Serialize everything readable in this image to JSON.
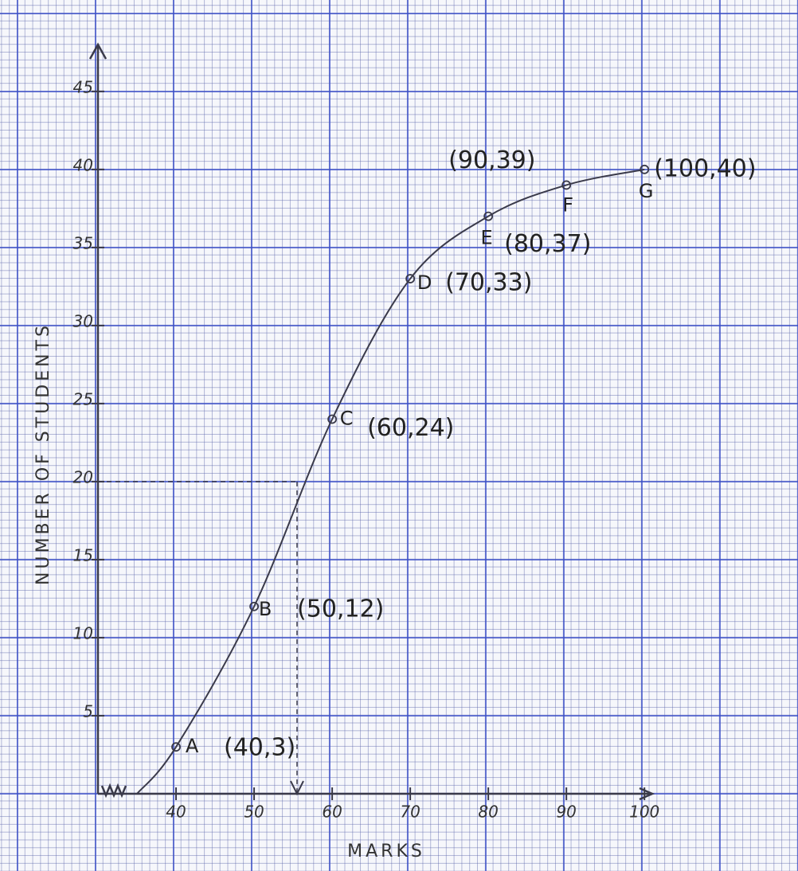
{
  "chart_data": {
    "type": "line",
    "x_label": "MARKS",
    "y_label": "NUMBER OF STUDENTS",
    "x": [
      35,
      40,
      50,
      60,
      70,
      80,
      90,
      100
    ],
    "values": [
      0,
      3,
      12,
      24,
      33,
      37,
      39,
      40
    ],
    "point_labels": [
      null,
      "A",
      "B",
      "C",
      "D",
      "E",
      "F",
      "G"
    ],
    "value_labels": [
      null,
      "(40,3)",
      "(50,12)",
      "(60,24)",
      "(70,33)",
      "(80,37)",
      "(90,39)",
      "(100,40)"
    ],
    "color": "#3a3a4a",
    "xlim": [
      30,
      101
    ],
    "ylim": [
      0,
      48
    ],
    "xticks": [
      40,
      50,
      60,
      70,
      80,
      90,
      100
    ],
    "yticks": [
      5,
      10,
      15,
      20,
      25,
      30,
      35,
      40,
      45
    ],
    "reference": {
      "y": 20,
      "x": 55.5
    }
  }
}
